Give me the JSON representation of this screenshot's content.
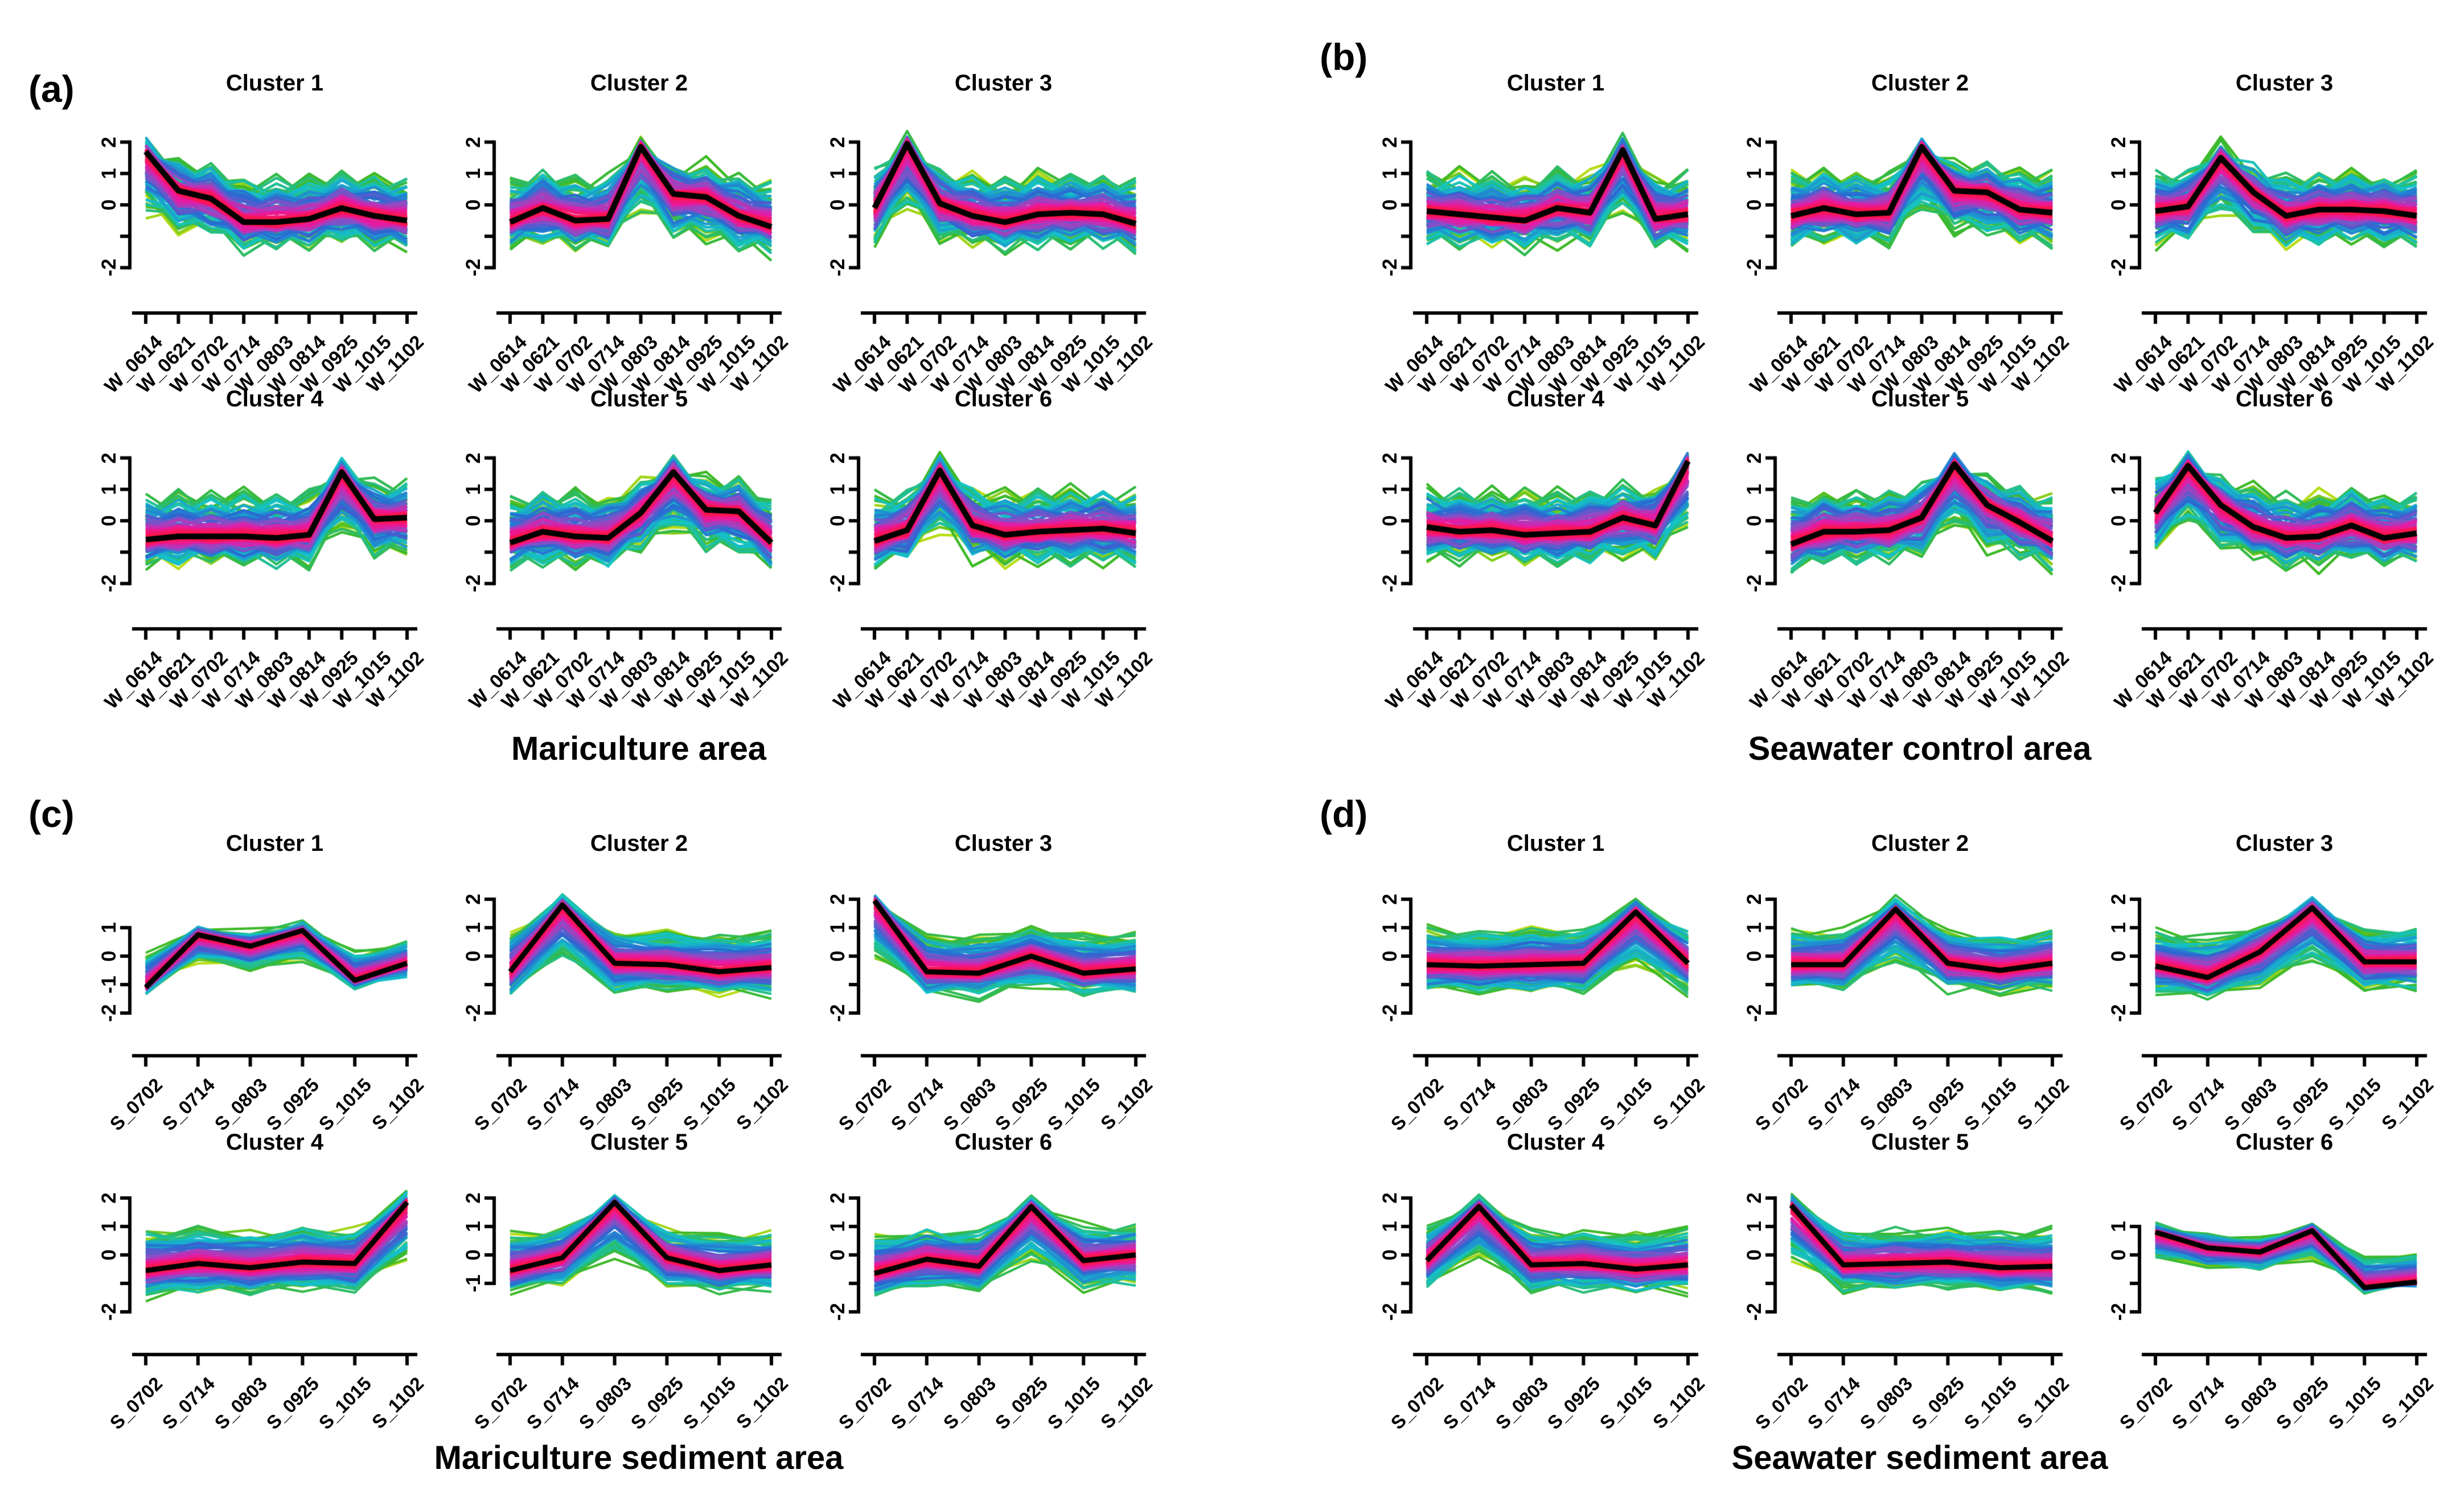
{
  "figure": {
    "background": "#ffffff",
    "description": "Fuzzy c-means clustering of temporal expression profiles; colored lines are individual profiles shaded by cluster membership, black line is the cluster centroid."
  },
  "palette": {
    "centroid_line": "#000000",
    "axis": "#000000",
    "membership_ramp_low_to_high": [
      "#b8dc16",
      "#3cb827",
      "#13c3cb",
      "#2a67d2",
      "#8b4fc6",
      "#e51ba6",
      "#fb1557",
      "#fc1446"
    ]
  },
  "chart_data": [
    {
      "panel": "a",
      "panel_label": "(a)",
      "type": "line",
      "title": "Mariculture area",
      "xlabel": "",
      "ylabel": "",
      "ylim": [
        -2,
        2
      ],
      "grid": false,
      "legend_note": "colored lines = member expression profiles (membership low green to high red); black line = cluster centroid",
      "x_categories": [
        "W_0614",
        "W_0621",
        "W_0702",
        "W_0714",
        "W_0803",
        "W_0814",
        "W_0925",
        "W_1015",
        "W_1102"
      ],
      "clusters": [
        {
          "name": "Cluster 1",
          "centroid": [
            1.7,
            0.45,
            0.2,
            -0.55,
            -0.55,
            -0.45,
            -0.1,
            -0.35,
            -0.5
          ],
          "spread": 1.0,
          "y_ticks": [
            -2,
            -1,
            0,
            1,
            2
          ],
          "y_tick_labels": [
            "-2",
            "",
            "0",
            "1",
            "2"
          ]
        },
        {
          "name": "Cluster 2",
          "centroid": [
            -0.55,
            -0.1,
            -0.5,
            -0.45,
            1.85,
            0.35,
            0.25,
            -0.35,
            -0.7
          ],
          "spread": 1.0,
          "y_ticks": [
            -2,
            -1,
            0,
            1,
            2
          ],
          "y_tick_labels": [
            "-2",
            "",
            "0",
            "1",
            "2"
          ]
        },
        {
          "name": "Cluster 3",
          "centroid": [
            -0.1,
            1.95,
            0.05,
            -0.35,
            -0.55,
            -0.3,
            -0.25,
            -0.3,
            -0.6
          ],
          "spread": 1.0,
          "y_ticks": [
            -2,
            -1,
            0,
            1,
            2
          ],
          "y_tick_labels": [
            "-2",
            "",
            "0",
            "1",
            "2"
          ]
        },
        {
          "name": "Cluster 4",
          "centroid": [
            -0.6,
            -0.5,
            -0.5,
            -0.5,
            -0.55,
            -0.45,
            1.55,
            0.05,
            0.1
          ],
          "spread": 1.0,
          "y_ticks": [
            -2,
            -1,
            0,
            1,
            2
          ],
          "y_tick_labels": [
            "-2",
            "",
            "0",
            "1",
            "2"
          ]
        },
        {
          "name": "Cluster 5",
          "centroid": [
            -0.7,
            -0.35,
            -0.5,
            -0.55,
            0.25,
            1.55,
            0.35,
            0.3,
            -0.7
          ],
          "spread": 1.0,
          "y_ticks": [
            -2,
            -1,
            0,
            1,
            2
          ],
          "y_tick_labels": [
            "-2",
            "",
            "0",
            "1",
            "2"
          ]
        },
        {
          "name": "Cluster 6",
          "centroid": [
            -0.65,
            -0.3,
            1.6,
            -0.15,
            -0.45,
            -0.35,
            -0.3,
            -0.25,
            -0.4
          ],
          "spread": 1.0,
          "y_ticks": [
            -2,
            -1,
            0,
            1,
            2
          ],
          "y_tick_labels": [
            "-2",
            "",
            "0",
            "1",
            "2"
          ]
        }
      ]
    },
    {
      "panel": "b",
      "panel_label": "(b)",
      "type": "line",
      "title": "Seawater control area",
      "xlabel": "",
      "ylabel": "",
      "ylim": [
        -2,
        2
      ],
      "grid": false,
      "legend_note": "colored lines = member expression profiles (membership low green to high red); black line = cluster centroid",
      "x_categories": [
        "W_0614",
        "W_0621",
        "W_0702",
        "W_0714",
        "W_0803",
        "W_0814",
        "W_0925",
        "W_1015",
        "W_1102"
      ],
      "clusters": [
        {
          "name": "Cluster 1",
          "centroid": [
            -0.2,
            -0.3,
            -0.4,
            -0.5,
            -0.1,
            -0.25,
            1.75,
            -0.45,
            -0.3
          ],
          "spread": 1.0,
          "y_ticks": [
            -2,
            -1,
            0,
            1,
            2
          ],
          "y_tick_labels": [
            "-2",
            "",
            "0",
            "1",
            "2"
          ]
        },
        {
          "name": "Cluster 2",
          "centroid": [
            -0.35,
            -0.1,
            -0.3,
            -0.25,
            1.85,
            0.45,
            0.4,
            -0.15,
            -0.25
          ],
          "spread": 1.0,
          "y_ticks": [
            -2,
            -1,
            0,
            1,
            2
          ],
          "y_tick_labels": [
            "-2",
            "",
            "0",
            "1",
            "2"
          ]
        },
        {
          "name": "Cluster 3",
          "centroid": [
            -0.2,
            -0.05,
            1.5,
            0.4,
            -0.35,
            -0.15,
            -0.15,
            -0.2,
            -0.35
          ],
          "spread": 1.0,
          "y_ticks": [
            -2,
            -1,
            0,
            1,
            2
          ],
          "y_tick_labels": [
            "-2",
            "",
            "0",
            "1",
            "2"
          ]
        },
        {
          "name": "Cluster 4",
          "centroid": [
            -0.2,
            -0.35,
            -0.3,
            -0.45,
            -0.4,
            -0.35,
            0.1,
            -0.15,
            1.9
          ],
          "spread": 1.0,
          "y_ticks": [
            -2,
            -1,
            0,
            1,
            2
          ],
          "y_tick_labels": [
            "-2",
            "",
            "0",
            "1",
            "2"
          ]
        },
        {
          "name": "Cluster 5",
          "centroid": [
            -0.75,
            -0.35,
            -0.35,
            -0.3,
            0.1,
            1.8,
            0.5,
            -0.05,
            -0.65
          ],
          "spread": 1.0,
          "y_ticks": [
            -2,
            -1,
            0,
            1,
            2
          ],
          "y_tick_labels": [
            "-2",
            "",
            "0",
            "1",
            "2"
          ]
        },
        {
          "name": "Cluster 6",
          "centroid": [
            0.25,
            1.75,
            0.5,
            -0.2,
            -0.55,
            -0.5,
            -0.15,
            -0.55,
            -0.4
          ],
          "spread": 1.0,
          "y_ticks": [
            -2,
            -1,
            0,
            1,
            2
          ],
          "y_tick_labels": [
            "-2",
            "",
            "0",
            "1",
            "2"
          ]
        }
      ]
    },
    {
      "panel": "c",
      "panel_label": "(c)",
      "type": "line",
      "title": "Mariculture sediment area",
      "xlabel": "",
      "ylabel": "",
      "ylim": [
        -2,
        2
      ],
      "grid": false,
      "legend_note": "colored lines = member expression profiles (membership low green to high red); black line = cluster centroid",
      "x_categories": [
        "S_0702",
        "S_0714",
        "S_0803",
        "S_0925",
        "S_1015",
        "S_1102"
      ],
      "clusters": [
        {
          "name": "Cluster 1",
          "centroid": [
            -1.1,
            0.75,
            0.35,
            0.9,
            -0.85,
            -0.25
          ],
          "spread": 0.55,
          "y_ticks": [
            -2,
            -1,
            0,
            1
          ],
          "y_tick_labels": [
            "-2",
            "-1",
            "0",
            "1"
          ]
        },
        {
          "name": "Cluster 2",
          "centroid": [
            -0.55,
            1.8,
            -0.25,
            -0.3,
            -0.55,
            -0.4
          ],
          "spread": 0.9,
          "y_ticks": [
            -2,
            -1,
            0,
            1,
            2
          ],
          "y_tick_labels": [
            "-2",
            "",
            "0",
            "1",
            "2"
          ]
        },
        {
          "name": "Cluster 3",
          "centroid": [
            1.95,
            -0.55,
            -0.6,
            0.0,
            -0.6,
            -0.45
          ],
          "spread": 0.9,
          "y_ticks": [
            -2,
            -1,
            0,
            1,
            2
          ],
          "y_tick_labels": [
            "-2",
            "",
            "0",
            "1",
            "2"
          ]
        },
        {
          "name": "Cluster 4",
          "centroid": [
            -0.55,
            -0.3,
            -0.45,
            -0.25,
            -0.3,
            1.85
          ],
          "spread": 0.95,
          "y_ticks": [
            -2,
            -1,
            0,
            1,
            2
          ],
          "y_tick_labels": [
            "-2",
            "",
            "0",
            "1",
            "2"
          ]
        },
        {
          "name": "Cluster 5",
          "centroid": [
            -0.55,
            -0.1,
            1.85,
            -0.1,
            -0.55,
            -0.35
          ],
          "spread": 0.85,
          "y_ticks": [
            -1,
            0,
            1,
            2
          ],
          "y_tick_labels": [
            "-1",
            "0",
            "1",
            "2"
          ]
        },
        {
          "name": "Cluster 6",
          "centroid": [
            -0.65,
            -0.15,
            -0.4,
            1.7,
            -0.2,
            0.0
          ],
          "spread": 0.9,
          "y_ticks": [
            -2,
            -1,
            0,
            1,
            2
          ],
          "y_tick_labels": [
            "-2",
            "",
            "0",
            "1",
            "2"
          ]
        }
      ]
    },
    {
      "panel": "d",
      "panel_label": "(d)",
      "type": "line",
      "title": "Seawater sediment area",
      "xlabel": "",
      "ylabel": "",
      "ylim": [
        -2,
        2
      ],
      "grid": false,
      "legend_note": "colored lines = member expression profiles (membership low green to high red); black line = cluster centroid",
      "x_categories": [
        "S_0702",
        "S_0714",
        "S_0803",
        "S_0925",
        "S_1015",
        "S_1102"
      ],
      "clusters": [
        {
          "name": "Cluster 1",
          "centroid": [
            -0.3,
            -0.35,
            -0.3,
            -0.25,
            1.55,
            -0.25
          ],
          "spread": 0.95,
          "y_ticks": [
            -2,
            -1,
            0,
            1,
            2
          ],
          "y_tick_labels": [
            "-2",
            "",
            "0",
            "1",
            "2"
          ]
        },
        {
          "name": "Cluster 2",
          "centroid": [
            -0.3,
            -0.3,
            1.65,
            -0.25,
            -0.5,
            -0.25
          ],
          "spread": 0.9,
          "y_ticks": [
            -2,
            -1,
            0,
            1,
            2
          ],
          "y_tick_labels": [
            "-2",
            "",
            "0",
            "1",
            "2"
          ]
        },
        {
          "name": "Cluster 3",
          "centroid": [
            -0.35,
            -0.75,
            0.15,
            1.7,
            -0.2,
            -0.2
          ],
          "spread": 0.9,
          "y_ticks": [
            -2,
            -1,
            0,
            1,
            2
          ],
          "y_tick_labels": [
            "-2",
            "",
            "0",
            "1",
            "2"
          ]
        },
        {
          "name": "Cluster 4",
          "centroid": [
            -0.2,
            1.7,
            -0.35,
            -0.3,
            -0.5,
            -0.35
          ],
          "spread": 0.9,
          "y_ticks": [
            -2,
            -1,
            0,
            1,
            2
          ],
          "y_tick_labels": [
            "-2",
            "",
            "0",
            "1",
            "2"
          ]
        },
        {
          "name": "Cluster 5",
          "centroid": [
            1.75,
            -0.35,
            -0.3,
            -0.25,
            -0.45,
            -0.4
          ],
          "spread": 0.9,
          "y_ticks": [
            -2,
            -1,
            0,
            1,
            2
          ],
          "y_tick_labels": [
            "-2",
            "",
            "0",
            "1",
            "2"
          ]
        },
        {
          "name": "Cluster 6",
          "centroid": [
            0.8,
            0.25,
            0.1,
            0.85,
            -1.15,
            -0.95
          ],
          "spread": 0.5,
          "y_ticks": [
            -2,
            -1,
            0,
            1
          ],
          "y_tick_labels": [
            "-2",
            "",
            "0",
            "1"
          ]
        }
      ]
    }
  ]
}
